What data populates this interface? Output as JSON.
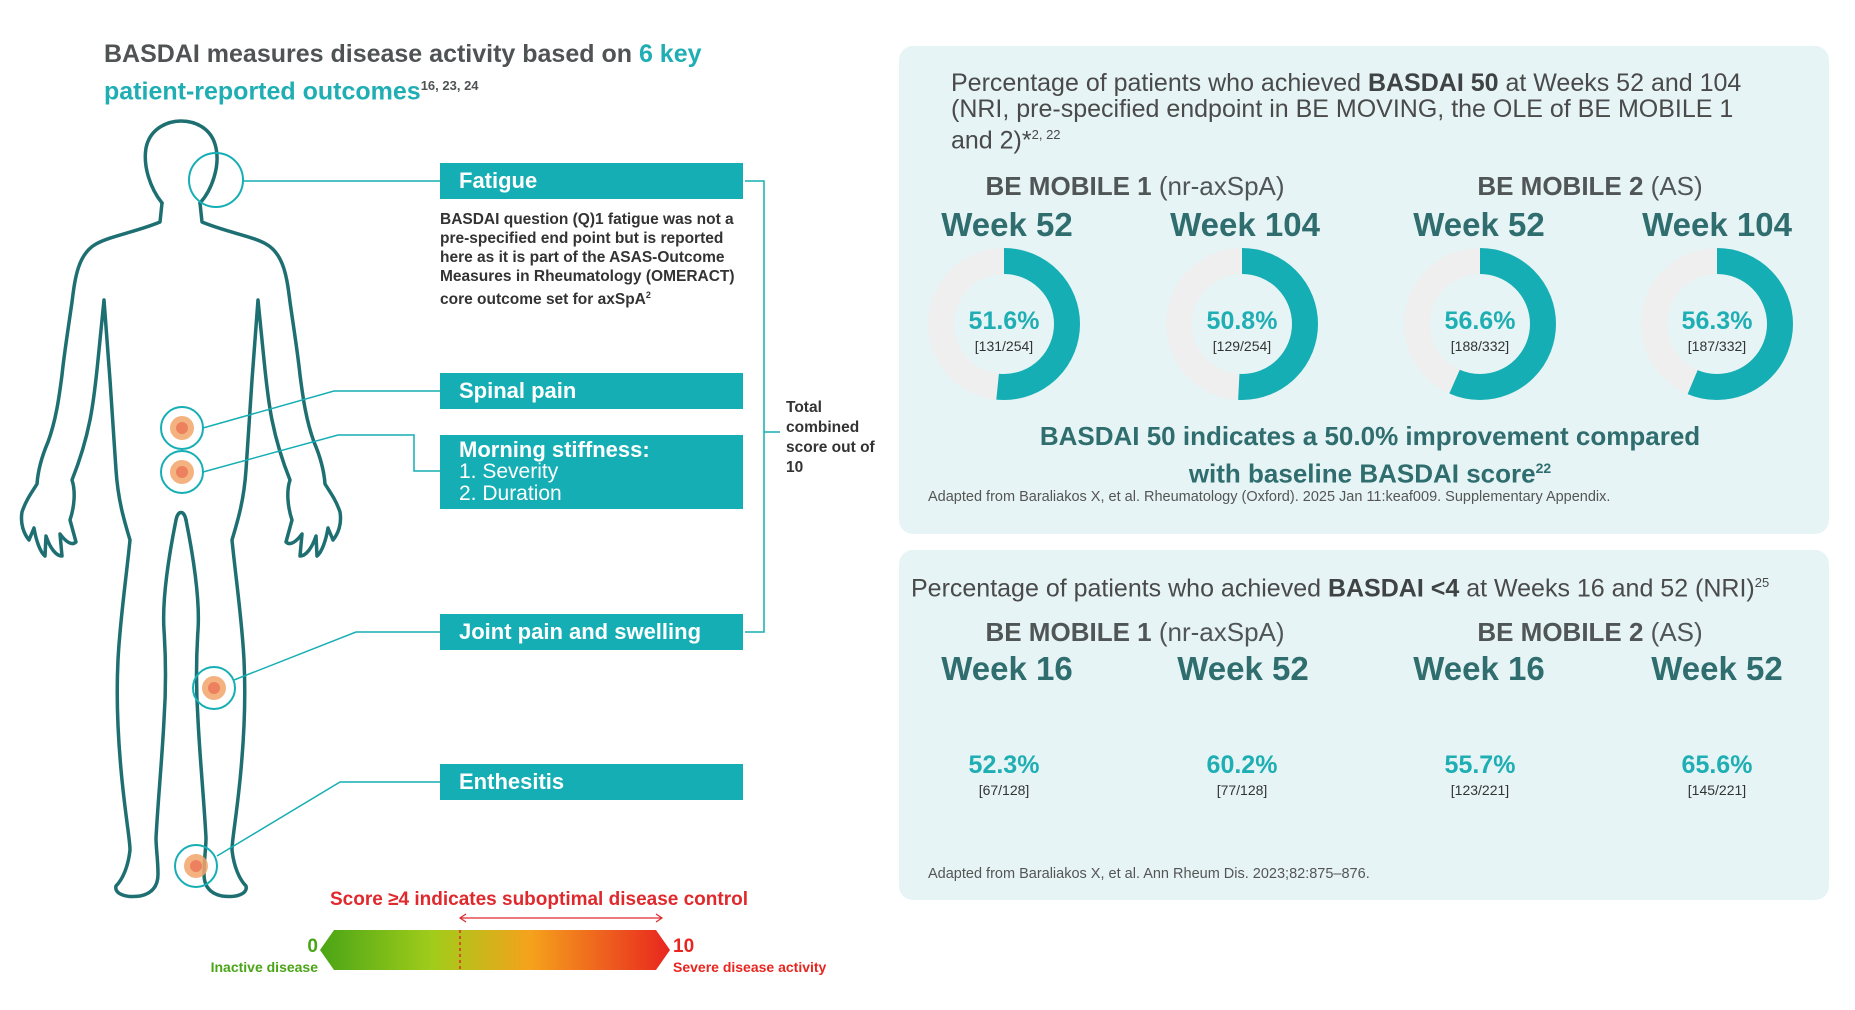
{
  "title": {
    "part1": "BASDAI measures disease activity based on ",
    "highlight": "6 key patient-reported outcomes",
    "refs": "16, 23, 24"
  },
  "labels": {
    "fatigue": "Fatigue",
    "fatigue_note": "BASDAI question (Q)1 fatigue was not a pre-specified end point but is reported here as it is part of the ASAS-Outcome Measures in Rheumatology (OMERACT) core outcome set for axSpA",
    "fatigue_note_ref": "2",
    "spinal_pain": "Spinal pain",
    "morning_stiffness": "Morning stiffness:",
    "severity": "1. Severity",
    "duration": "2. Duration",
    "joint_pain": "Joint pain and swelling",
    "enthesitis": "Enthesitis",
    "total": "Total combined score out of 10"
  },
  "scale": {
    "title": "Score ≥4 indicates suboptimal disease control",
    "min_value": "0",
    "min_label": "Inactive disease",
    "max_value": "10",
    "max_label": "Severe disease activity",
    "threshold": 4,
    "colors": {
      "green": "#4aa516",
      "red": "#e8261f"
    }
  },
  "panel1": {
    "title_pre": "Percentage of patients who achieved ",
    "title_bold": "BASDAI 50",
    "title_post": " at Weeks 52 and 104 (NRI, pre-specified endpoint in BE MOVING, the OLE of BE MOBILE 1 and 2)*",
    "title_refs": "2, 22",
    "group1_bold": "BE MOBILE 1",
    "group1_norm": " (nr-axSpA)",
    "group2_bold": "BE MOBILE 2",
    "group2_norm": " (AS)",
    "donuts": [
      {
        "week": "Week 52",
        "pct": "51.6%",
        "count": "[131/254]",
        "value": 51.6
      },
      {
        "week": "Week 104",
        "pct": "50.8%",
        "count": "[129/254]",
        "value": 50.8
      },
      {
        "week": "Week 52",
        "pct": "56.6%",
        "count": "[188/332]",
        "value": 56.6
      },
      {
        "week": "Week 104",
        "pct": "56.3%",
        "count": "[187/332]",
        "value": 56.3
      }
    ],
    "note": "BASDAI 50 indicates a 50.0% improvement compared with baseline BASDAI score",
    "note_ref": "22",
    "reference": "Adapted from Baraliakos X, et al. Rheumatology (Oxford). 2025 Jan 11:keaf009. Supplementary Appendix."
  },
  "panel2": {
    "title_pre": "Percentage of patients who achieved ",
    "title_bold": "BASDAI <4",
    "title_post": " at Weeks 16 and 52 (NRI)",
    "title_refs": "25",
    "group1_bold": "BE MOBILE 1",
    "group1_norm": " (nr-axSpA)",
    "group2_bold": "BE MOBILE 2",
    "group2_norm": " (AS)",
    "donuts": [
      {
        "week": "Week 16",
        "pct": "52.3%",
        "count": "[67/128]",
        "value": 52.3
      },
      {
        "week": "Week 52",
        "pct": "60.2%",
        "count": "[77/128]",
        "value": 60.2
      },
      {
        "week": "Week 16",
        "pct": "55.7%",
        "count": "[123/221]",
        "value": 55.7
      },
      {
        "week": "Week 52",
        "pct": "65.6%",
        "count": "[145/221]",
        "value": 65.6
      }
    ],
    "reference": "Adapted from Baraliakos X, et al. Ann Rheum Dis. 2023;82:875–876."
  },
  "colors": {
    "teal": "#15aeb4",
    "dark_teal": "#2f6d6e",
    "track": "#efefef",
    "panel": "#e6f4f5"
  }
}
